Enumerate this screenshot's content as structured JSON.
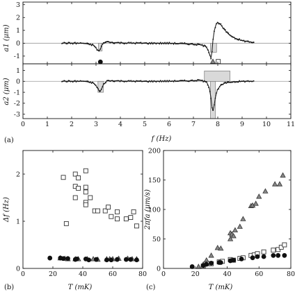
{
  "panel_labels": {
    "a": "(a)",
    "b": "(b)",
    "c": "(c)"
  },
  "chart_data": [
    {
      "id": "a1",
      "type": "line",
      "xlabel": "f (Hz)",
      "ylabel": "a1 (μm)",
      "xlim": [
        0,
        11
      ],
      "ylim": [
        -1.6,
        3.2
      ],
      "xticks": [
        0,
        1,
        2,
        3,
        4,
        5,
        6,
        7,
        8,
        9,
        10,
        11
      ],
      "yticks": [
        -1,
        0,
        1,
        2,
        3
      ],
      "series": [
        {
          "kind": "fit-line",
          "x": [
            1.6,
            2.0,
            2.5,
            2.9,
            3.05,
            3.12,
            3.18,
            3.25,
            3.4,
            3.7,
            4.2,
            5.0,
            6.0,
            6.8,
            7.3,
            7.5,
            7.6,
            7.68,
            7.72,
            7.76,
            7.8,
            7.86,
            7.93,
            8.0,
            8.1,
            8.25,
            8.45,
            8.7,
            9.0,
            9.5
          ],
          "y": [
            0.02,
            0.0,
            0.0,
            -0.15,
            -0.5,
            -0.62,
            -0.45,
            -0.1,
            0.12,
            0.05,
            0.02,
            0.0,
            0.0,
            -0.05,
            -0.12,
            -0.25,
            -0.5,
            -0.95,
            -1.15,
            -0.7,
            0.2,
            1.0,
            1.45,
            1.62,
            1.5,
            1.1,
            0.7,
            0.4,
            0.2,
            0.05
          ]
        },
        {
          "kind": "shaded-bar",
          "x": [
            3.1,
            3.25
          ],
          "y": [
            -0.6,
            0
          ]
        },
        {
          "kind": "shaded-bar",
          "x": [
            7.7,
            7.95
          ],
          "y": [
            -0.7,
            0
          ]
        }
      ],
      "markers": [
        {
          "shape": "circle",
          "x": 3.18,
          "y": -1.45
        },
        {
          "shape": "triangle",
          "x": 7.8,
          "y": -1.42
        },
        {
          "shape": "square",
          "x": 8.02,
          "y": -1.42
        }
      ]
    },
    {
      "id": "a2",
      "type": "line",
      "ylabel": "a2 (μm)",
      "xlim": [
        0,
        11
      ],
      "ylim": [
        -3.4,
        1.6
      ],
      "yticks": [
        -3,
        -2,
        -1,
        0,
        1
      ],
      "series": [
        {
          "kind": "fit-line",
          "x": [
            1.6,
            2.0,
            2.5,
            2.9,
            3.05,
            3.15,
            3.22,
            3.3,
            3.45,
            3.7,
            4.2,
            5.0,
            6.0,
            6.8,
            7.3,
            7.55,
            7.65,
            7.72,
            7.76,
            7.8,
            7.84,
            7.9,
            7.98,
            8.1,
            8.3,
            8.6,
            9.0,
            9.5
          ],
          "y": [
            0.02,
            0.0,
            0.02,
            -0.15,
            -0.55,
            -0.95,
            -0.75,
            -0.3,
            0.05,
            0.05,
            0.02,
            0.0,
            0.02,
            0.05,
            0.1,
            -0.1,
            -0.6,
            -1.5,
            -2.3,
            -2.7,
            -2.35,
            -1.5,
            -0.8,
            -0.4,
            -0.15,
            -0.05,
            0.0,
            0.02
          ]
        },
        {
          "kind": "shaded-bar",
          "x": [
            3.08,
            3.3
          ],
          "y": [
            -1.0,
            0
          ]
        },
        {
          "kind": "shaded-bar",
          "x": [
            7.7,
            7.9
          ],
          "y": [
            -3.4,
            0
          ]
        },
        {
          "kind": "shaded-bar",
          "x": [
            7.45,
            8.5
          ],
          "y": [
            0,
            0.95
          ]
        }
      ]
    },
    {
      "id": "b",
      "type": "scatter",
      "xlabel": "T (mK)",
      "ylabel": "Δf (Hz)",
      "xlim": [
        0,
        80
      ],
      "ylim": [
        0,
        2.5
      ],
      "xticks": [
        0,
        20,
        40,
        60,
        80
      ],
      "yticks": [
        0,
        1,
        2
      ],
      "series": [
        {
          "shape": "square",
          "points": [
            [
              27,
              1.93
            ],
            [
              29,
              0.95
            ],
            [
              35,
              2.0
            ],
            [
              35,
              1.74
            ],
            [
              35,
              1.5
            ],
            [
              37,
              1.7
            ],
            [
              37,
              1.92
            ],
            [
              42,
              2.07
            ],
            [
              42,
              1.72
            ],
            [
              42,
              1.62
            ],
            [
              42,
              1.4
            ],
            [
              42,
              1.35
            ],
            [
              45,
              1.5
            ],
            [
              48,
              1.22
            ],
            [
              50,
              1.22
            ],
            [
              55,
              1.22
            ],
            [
              57,
              1.3
            ],
            [
              59,
              1.1
            ],
            [
              63,
              1.2
            ],
            [
              63,
              1.05
            ],
            [
              69,
              1.05
            ],
            [
              72,
              1.08
            ],
            [
              74,
              1.2
            ],
            [
              76,
              0.9
            ]
          ]
        },
        {
          "shape": "triangle",
          "points": [
            [
              25,
              0.22
            ],
            [
              28,
              0.21
            ],
            [
              30,
              0.2
            ],
            [
              35,
              0.2
            ],
            [
              37,
              0.2
            ],
            [
              43,
              0.2
            ],
            [
              47,
              0.2
            ],
            [
              50,
              0.19
            ],
            [
              56,
              0.2
            ],
            [
              58,
              0.2
            ],
            [
              60,
              0.2
            ],
            [
              64,
              0.21
            ],
            [
              70,
              0.21
            ],
            [
              73,
              0.2
            ],
            [
              76,
              0.2
            ]
          ]
        },
        {
          "shape": "circle",
          "points": [
            [
              18,
              0.22
            ],
            [
              25,
              0.22
            ],
            [
              27,
              0.21
            ],
            [
              30,
              0.21
            ],
            [
              35,
              0.19
            ],
            [
              36,
              0.2
            ],
            [
              42,
              0.2
            ],
            [
              44,
              0.18
            ],
            [
              49,
              0.19
            ],
            [
              56,
              0.18
            ],
            [
              59,
              0.18
            ],
            [
              63,
              0.19
            ],
            [
              69,
              0.19
            ],
            [
              72,
              0.19
            ],
            [
              76,
              0.18
            ]
          ]
        }
      ]
    },
    {
      "id": "c",
      "type": "scatter",
      "xlabel": "T (mK)",
      "ylabel": "2πfa (μm/s)",
      "xlim": [
        0,
        80
      ],
      "ylim": [
        0,
        200
      ],
      "xticks": [
        0,
        20,
        40,
        60,
        80
      ],
      "yticks": [
        0,
        50,
        100,
        150,
        200
      ],
      "series": [
        {
          "shape": "triangle",
          "points": [
            [
              22,
              3
            ],
            [
              25,
              7
            ],
            [
              27,
              14
            ],
            [
              30,
              22
            ],
            [
              34,
              35
            ],
            [
              36,
              34
            ],
            [
              42,
              50
            ],
            [
              42,
              60
            ],
            [
              43,
              58
            ],
            [
              44,
              55
            ],
            [
              45,
              65
            ],
            [
              48,
              71
            ],
            [
              50,
              84
            ],
            [
              55,
              106
            ],
            [
              56,
              107
            ],
            [
              58,
              110
            ],
            [
              60,
              122
            ],
            [
              64,
              131
            ],
            [
              70,
              143
            ],
            [
              73,
              143
            ],
            [
              75,
              158
            ]
          ]
        },
        {
          "shape": "square",
          "points": [
            [
              25,
              4
            ],
            [
              28,
              8
            ],
            [
              30,
              8
            ],
            [
              35,
              11
            ],
            [
              37,
              12
            ],
            [
              42,
              15
            ],
            [
              44,
              14
            ],
            [
              48,
              17
            ],
            [
              50,
              18
            ],
            [
              55,
              22
            ],
            [
              57,
              23
            ],
            [
              59,
              25
            ],
            [
              63,
              28
            ],
            [
              69,
              31
            ],
            [
              72,
              32
            ],
            [
              74,
              36
            ],
            [
              76,
              40
            ]
          ]
        },
        {
          "shape": "circle",
          "points": [
            [
              18,
              3
            ],
            [
              25,
              5
            ],
            [
              27,
              7
            ],
            [
              30,
              9
            ],
            [
              35,
              10
            ],
            [
              36,
              10
            ],
            [
              42,
              13
            ],
            [
              44,
              14
            ],
            [
              49,
              16
            ],
            [
              56,
              18
            ],
            [
              59,
              20
            ],
            [
              63,
              20
            ],
            [
              69,
              22
            ],
            [
              72,
              22
            ],
            [
              76,
              22
            ]
          ]
        }
      ]
    }
  ]
}
